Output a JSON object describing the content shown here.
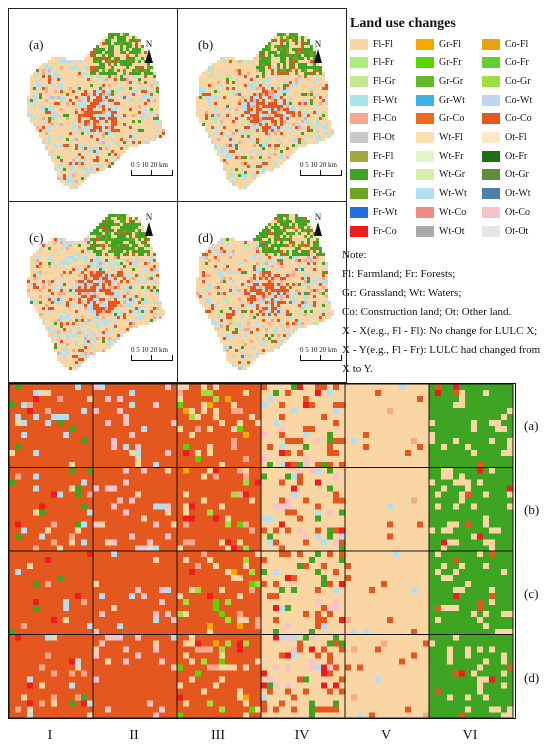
{
  "panels": [
    {
      "label": "(a)"
    },
    {
      "label": "(b)"
    },
    {
      "label": "(c)"
    },
    {
      "label": "(d)"
    }
  ],
  "north_label": "N",
  "scale_text": "0 5 10  20  km",
  "legend": {
    "title": "Land use changes",
    "items": [
      {
        "label": "Fl-Fl",
        "color": "#FAD6A5"
      },
      {
        "label": "Gr-Fl",
        "color": "#F5A800"
      },
      {
        "label": "Co-Fl",
        "color": "#E8A20C"
      },
      {
        "label": "Fl-Fr",
        "color": "#A8F07A"
      },
      {
        "label": "Gr-Fr",
        "color": "#55D800"
      },
      {
        "label": "Co-Fr",
        "color": "#66CC33"
      },
      {
        "label": "Fl-Gr",
        "color": "#C8E890"
      },
      {
        "label": "Gr-Gr",
        "color": "#66B82A"
      },
      {
        "label": "Co-Gr",
        "color": "#A0DE40"
      },
      {
        "label": "Fl-Wt",
        "color": "#A6E6E8"
      },
      {
        "label": "Gr-Wt",
        "color": "#3BB4E6"
      },
      {
        "label": "Co-Wt",
        "color": "#BFD4EE"
      },
      {
        "label": "Fl-Co",
        "color": "#F7A88E"
      },
      {
        "label": "Gr-Co",
        "color": "#F26A1E"
      },
      {
        "label": "Co-Co",
        "color": "#E4571F"
      },
      {
        "label": "Fl-Ot",
        "color": "#C8C8C8"
      },
      {
        "label": "Wt-Fl",
        "color": "#FBE0B2"
      },
      {
        "label": "Ot-Fl",
        "color": "#FCE8C8"
      },
      {
        "label": "Fr-Fl",
        "color": "#A7A83A"
      },
      {
        "label": "Wt-Fr",
        "color": "#E0F5C8"
      },
      {
        "label": "Ot-Fr",
        "color": "#206E12"
      },
      {
        "label": "Fr-Fr",
        "color": "#3DA522"
      },
      {
        "label": "Wt-Gr",
        "color": "#D6F0A8"
      },
      {
        "label": "Ot-Gr",
        "color": "#5E8E3A"
      },
      {
        "label": "Fr-Gr",
        "color": "#6EA51E"
      },
      {
        "label": "Wt-Wt",
        "color": "#B4DFF0"
      },
      {
        "label": "Ot-Wt",
        "color": "#4E7FA8"
      },
      {
        "label": "Fr-Wt",
        "color": "#1E6FE6"
      },
      {
        "label": "Wt-Co",
        "color": "#F48A86"
      },
      {
        "label": "Ot-Co",
        "color": "#F7C2CC"
      },
      {
        "label": "Fr-Co",
        "color": "#EE1C1C"
      },
      {
        "label": "Wt-Ot",
        "color": "#AAAAAA"
      },
      {
        "label": "Ot-Ot",
        "color": "#E6E6E6"
      }
    ]
  },
  "notes": {
    "lines": [
      "Note:",
      "Fl: Farmland; Fr: Forests;",
      "Gr: Grassland; Wt: Waters;",
      "Co: Construction land; Ot: Other land.",
      "X - X(e.g., Fl - Fl): No change for LULC X;",
      "X - Y(e.g., Fl - Fr): LULC had changed from X to Y."
    ]
  },
  "grid": {
    "row_labels": [
      "(a)",
      "(b)",
      "(c)",
      "(d)"
    ],
    "col_labels": [
      "I",
      "II",
      "III",
      "IV",
      "V",
      "VI"
    ]
  }
}
